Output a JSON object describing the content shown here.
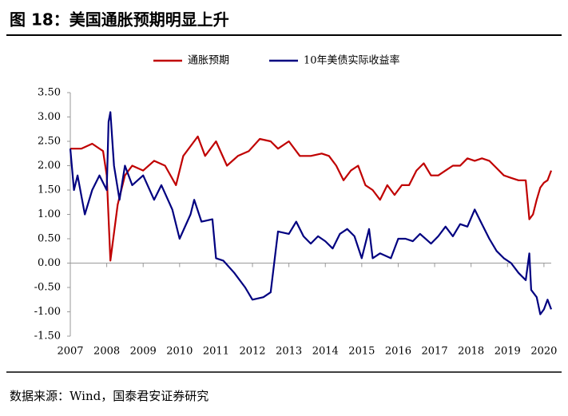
{
  "chart_data": {
    "type": "line",
    "title": "图 18：美国通胀预期明显上升",
    "source": "数据来源：Wind，国泰君安证券研究",
    "xlim": [
      2007,
      2020.2
    ],
    "xticks": [
      2007,
      2008,
      2009,
      2010,
      2011,
      2012,
      2013,
      2014,
      2015,
      2016,
      2017,
      2018,
      2019,
      2020
    ],
    "ylim": [
      -1.5,
      3.5
    ],
    "yticks": [
      {
        "value": -1.5,
        "label": "-1.50"
      },
      {
        "value": -1,
        "label": "-1.00"
      },
      {
        "value": -0.5,
        "label": "-0.50"
      },
      {
        "value": 0,
        "label": "0.00"
      },
      {
        "value": 0.5,
        "label": "0.50"
      },
      {
        "value": 1,
        "label": "1.00"
      },
      {
        "value": 1.5,
        "label": "1.50"
      },
      {
        "value": 2,
        "label": "2.00"
      },
      {
        "value": 2.5,
        "label": "2.50"
      },
      {
        "value": 3,
        "label": "3.00"
      },
      {
        "value": 3.5,
        "label": "3.50"
      }
    ],
    "grid": false,
    "legend": "top",
    "series": [
      {
        "name": "通胀预期",
        "color": "#c00000",
        "x": [
          2007.0,
          2007.3,
          2007.6,
          2007.9,
          2008.0,
          2008.1,
          2008.3,
          2008.5,
          2008.7,
          2009.0,
          2009.3,
          2009.6,
          2009.9,
          2010.1,
          2010.3,
          2010.5,
          2010.7,
          2011.0,
          2011.3,
          2011.6,
          2011.9,
          2012.2,
          2012.5,
          2012.7,
          2013.0,
          2013.3,
          2013.6,
          2013.9,
          2014.1,
          2014.3,
          2014.5,
          2014.7,
          2014.9,
          2015.1,
          2015.3,
          2015.5,
          2015.7,
          2015.9,
          2016.1,
          2016.3,
          2016.5,
          2016.7,
          2016.9,
          2017.1,
          2017.3,
          2017.5,
          2017.7,
          2017.9,
          2018.1,
          2018.3,
          2018.5,
          2018.7,
          2018.9,
          2019.1,
          2019.3,
          2019.5,
          2019.6,
          2019.7,
          2019.8,
          2019.9,
          2020.0,
          2020.1,
          2020.2
        ],
        "values": [
          2.35,
          2.35,
          2.45,
          2.3,
          1.8,
          0.05,
          1.2,
          1.8,
          2.0,
          1.9,
          2.1,
          2.0,
          1.6,
          2.2,
          2.4,
          2.6,
          2.2,
          2.5,
          2.0,
          2.2,
          2.3,
          2.55,
          2.5,
          2.35,
          2.5,
          2.2,
          2.2,
          2.25,
          2.2,
          2.0,
          1.7,
          1.9,
          2.0,
          1.6,
          1.5,
          1.3,
          1.6,
          1.4,
          1.6,
          1.6,
          1.9,
          2.05,
          1.8,
          1.8,
          1.9,
          2.0,
          2.0,
          2.15,
          2.1,
          2.15,
          2.1,
          1.95,
          1.8,
          1.75,
          1.7,
          1.7,
          0.9,
          1.0,
          1.3,
          1.55,
          1.65,
          1.7,
          1.9
        ]
      },
      {
        "name": "10年美债实际收益率",
        "color": "#000080",
        "x": [
          2007.0,
          2007.1,
          2007.2,
          2007.4,
          2007.6,
          2007.8,
          2008.0,
          2008.05,
          2008.1,
          2008.2,
          2008.35,
          2008.5,
          2008.7,
          2009.0,
          2009.3,
          2009.5,
          2009.8,
          2010.0,
          2010.3,
          2010.4,
          2010.6,
          2010.9,
          2011.0,
          2011.2,
          2011.5,
          2011.8,
          2012.0,
          2012.3,
          2012.5,
          2012.7,
          2013.0,
          2013.2,
          2013.4,
          2013.6,
          2013.8,
          2014.0,
          2014.2,
          2014.4,
          2014.6,
          2014.8,
          2015.0,
          2015.2,
          2015.3,
          2015.5,
          2015.8,
          2016.0,
          2016.2,
          2016.4,
          2016.6,
          2016.9,
          2017.1,
          2017.3,
          2017.5,
          2017.7,
          2017.9,
          2018.1,
          2018.3,
          2018.5,
          2018.7,
          2018.9,
          2019.1,
          2019.3,
          2019.5,
          2019.6,
          2019.65,
          2019.8,
          2019.9,
          2020.0,
          2020.1,
          2020.2
        ],
        "values": [
          2.35,
          1.5,
          1.8,
          1.0,
          1.5,
          1.8,
          1.5,
          2.9,
          3.1,
          2.0,
          1.3,
          2.0,
          1.6,
          1.8,
          1.3,
          1.6,
          1.1,
          0.5,
          1.0,
          1.3,
          0.85,
          0.9,
          0.1,
          0.05,
          -0.2,
          -0.5,
          -0.75,
          -0.7,
          -0.6,
          0.65,
          0.6,
          0.85,
          0.55,
          0.4,
          0.55,
          0.45,
          0.3,
          0.6,
          0.7,
          0.55,
          0.1,
          0.7,
          0.1,
          0.2,
          0.1,
          0.5,
          0.5,
          0.45,
          0.6,
          0.4,
          0.55,
          0.75,
          0.55,
          0.8,
          0.75,
          1.1,
          0.8,
          0.5,
          0.25,
          0.1,
          0.0,
          -0.2,
          -0.35,
          0.2,
          -0.55,
          -0.7,
          -1.05,
          -0.95,
          -0.75,
          -0.95
        ]
      }
    ]
  }
}
